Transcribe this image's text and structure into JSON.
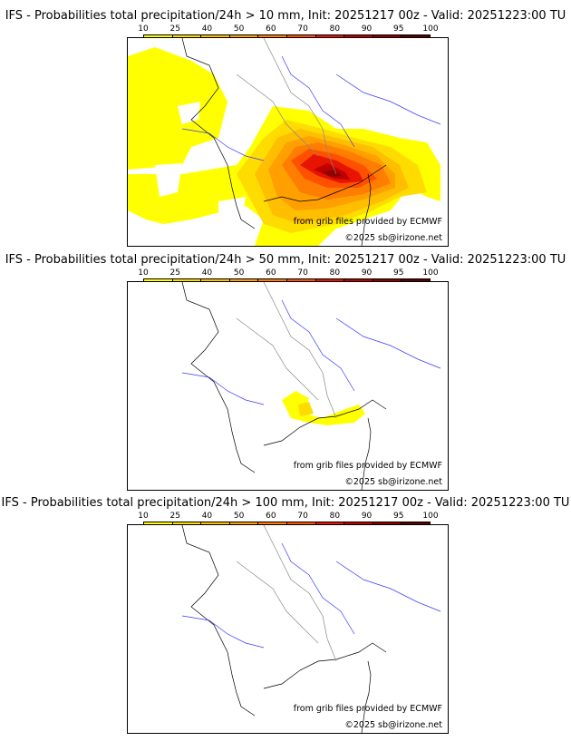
{
  "colorbar": {
    "ticks": [
      "10",
      "25",
      "40",
      "50",
      "60",
      "70",
      "80",
      "90",
      "95",
      "100"
    ],
    "colors": [
      "#ffff00",
      "#ffdc00",
      "#ffbe00",
      "#ffa000",
      "#ff7d00",
      "#ff5000",
      "#e61400",
      "#be0000",
      "#8c0000",
      "#5a0000"
    ]
  },
  "panels": [
    {
      "title": "IFS - Probabilities total precipitation/24h > 10 mm, Init: 20251217 00z - Valid: 20251223:00 TU",
      "credit": "from grib files provided by ECMWF",
      "copyright": "©2025 sb@irizone.net"
    },
    {
      "title": "IFS - Probabilities total precipitation/24h > 50 mm, Init: 20251217 00z - Valid: 20251223:00 TU",
      "credit": "from grib files provided by ECMWF",
      "copyright": "©2025 sb@irizone.net"
    },
    {
      "title": "IFS - Probabilities total precipitation/24h > 100 mm, Init: 20251217 00z - Valid: 20251223:00 TU",
      "credit": "from grib files provided by ECMWF",
      "copyright": "©2025 sb@irizone.net"
    }
  ]
}
